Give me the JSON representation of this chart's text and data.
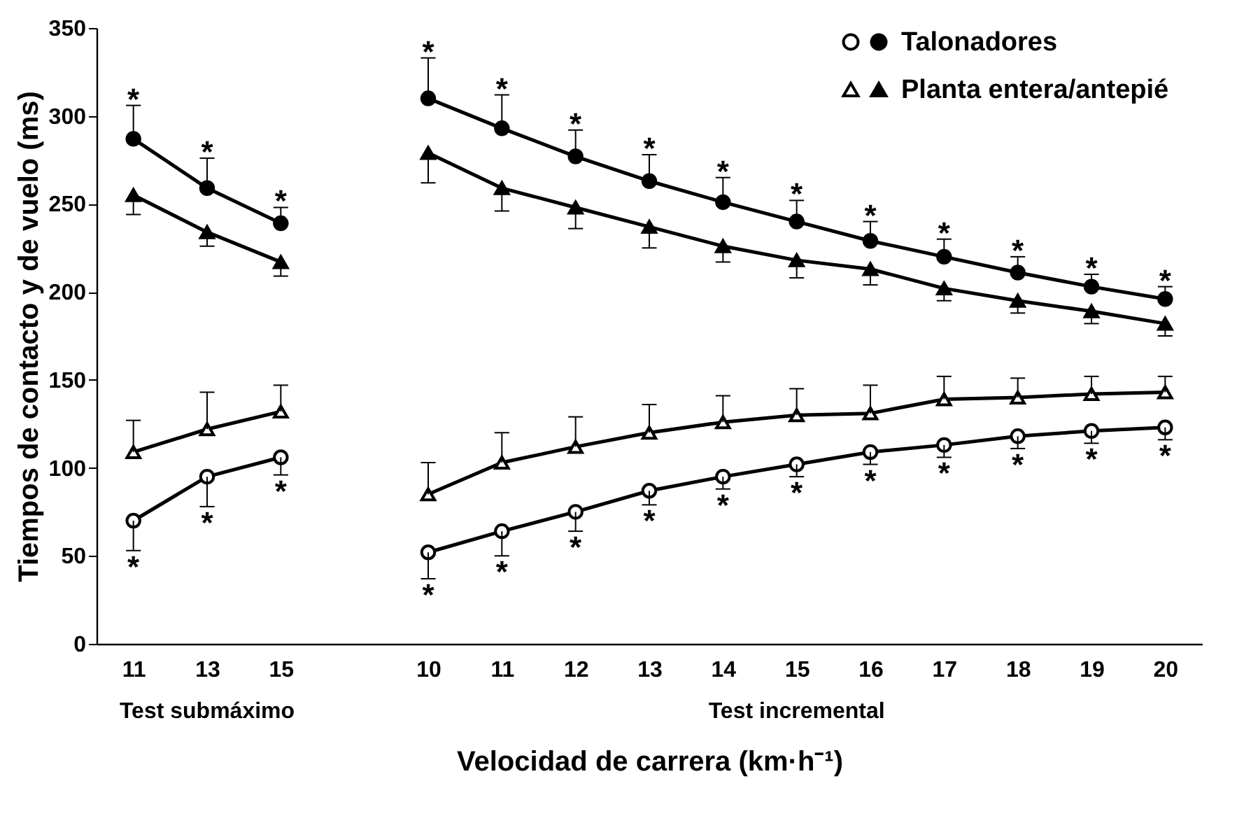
{
  "chart_data": {
    "type": "line",
    "xlabel": "Velocidad de carrera (km·h⁻¹)",
    "ylabel": "Tiempos de contacto y de vuelo (ms)",
    "ylim": [
      0,
      350
    ],
    "yticks": [
      0,
      50,
      100,
      150,
      200,
      250,
      300,
      350
    ],
    "legend": "top right",
    "annotations": [
      "Test submáximo",
      "Test incremental"
    ],
    "categories": [
      "11",
      "13",
      "15",
      null,
      "10",
      "11",
      "12",
      "13",
      "14",
      "15",
      "16",
      "17",
      "18",
      "19",
      "20"
    ],
    "series": [
      {
        "name": "Talonadores",
        "color": "#000000",
        "marker": "circle",
        "values": [
          287,
          259,
          239,
          null,
          310,
          293,
          277,
          263,
          251,
          240,
          229,
          220,
          211,
          203,
          196
        ],
        "errors": [
          [
            287,
            306
          ],
          [
            259,
            276
          ],
          [
            239,
            248
          ],
          null,
          [
            310,
            333
          ],
          [
            293,
            312
          ],
          [
            277,
            292
          ],
          [
            263,
            278
          ],
          [
            251,
            265
          ],
          [
            240,
            252
          ],
          [
            229,
            240
          ],
          [
            220,
            230
          ],
          [
            211,
            220
          ],
          [
            203,
            210
          ],
          [
            196,
            203
          ]
        ],
        "value_labels": [
          "*",
          "*",
          "*",
          null,
          "*",
          "*",
          "*",
          "*",
          "*",
          "*",
          "*",
          "*",
          "*",
          "*",
          "*"
        ]
      },
      {
        "name": "Planta entera/antepié",
        "color": "#000000",
        "marker": "triangle",
        "values": [
          255,
          234,
          217,
          null,
          279,
          259,
          248,
          237,
          226,
          218,
          213,
          202,
          195,
          189,
          182
        ],
        "errors": [
          [
            244,
            255
          ],
          [
            226,
            234
          ],
          [
            209,
            217
          ],
          null,
          [
            262,
            279
          ],
          [
            246,
            259
          ],
          [
            236,
            248
          ],
          [
            225,
            237
          ],
          [
            217,
            226
          ],
          [
            208,
            218
          ],
          [
            204,
            213
          ],
          [
            195,
            202
          ],
          [
            188,
            195
          ],
          [
            182,
            189
          ],
          [
            175,
            182
          ]
        ]
      },
      {
        "color": "#ffffff",
        "marker": "circle",
        "values": [
          70,
          95,
          106,
          null,
          52,
          64,
          75,
          87,
          95,
          102,
          109,
          113,
          118,
          121,
          123
        ],
        "errors": [
          [
            53,
            70
          ],
          [
            78,
            95
          ],
          [
            96,
            106
          ],
          null,
          [
            37,
            52
          ],
          [
            50,
            64
          ],
          [
            64,
            75
          ],
          [
            79,
            87
          ],
          [
            88,
            95
          ],
          [
            95,
            102
          ],
          [
            102,
            109
          ],
          [
            106,
            113
          ],
          [
            111,
            118
          ],
          [
            114,
            121
          ],
          [
            116,
            123
          ]
        ],
        "value_labels": [
          "*",
          "*",
          "*",
          null,
          "*",
          "*",
          "*",
          "*",
          "*",
          "*",
          "*",
          "*",
          "*",
          "*",
          "*"
        ]
      },
      {
        "color": "#ffffff",
        "marker": "triangle",
        "values": [
          109,
          122,
          132,
          null,
          85,
          103,
          112,
          120,
          126,
          130,
          131,
          139,
          140,
          142,
          143
        ],
        "errors": [
          [
            109,
            127
          ],
          [
            122,
            143
          ],
          [
            132,
            147
          ],
          null,
          [
            85,
            103
          ],
          [
            103,
            120
          ],
          [
            112,
            129
          ],
          [
            120,
            136
          ],
          [
            126,
            141
          ],
          [
            130,
            145
          ],
          [
            131,
            147
          ],
          [
            139,
            152
          ],
          [
            140,
            151
          ],
          [
            142,
            152
          ],
          [
            143,
            152
          ]
        ]
      }
    ]
  }
}
